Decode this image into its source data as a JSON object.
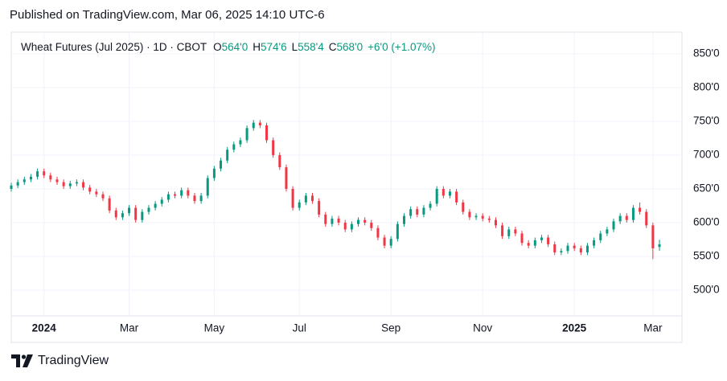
{
  "header": "Published on TradingView.com, Mar 06, 2025 14:10 UTC-6",
  "chart_data": {
    "type": "candlestick",
    "legend": {
      "symbol": "Wheat Futures (Jul 2025) · 1D · CBOT",
      "o_label": "O",
      "open": "564'0",
      "h_label": "H",
      "high": "574'6",
      "l_label": "L",
      "low": "558'4",
      "c_label": "C",
      "close": "568'0",
      "change": "+6'0 (+1.07%)"
    },
    "categories": [
      null,
      null,
      null,
      null,
      null,
      "2024",
      null,
      null,
      null,
      null,
      null,
      null,
      null,
      null,
      null,
      null,
      null,
      null,
      "Mar",
      null,
      null,
      null,
      null,
      null,
      null,
      null,
      null,
      null,
      null,
      null,
      null,
      "May",
      null,
      null,
      null,
      null,
      null,
      null,
      null,
      null,
      null,
      null,
      null,
      null,
      "Jul",
      null,
      null,
      null,
      null,
      null,
      null,
      null,
      null,
      null,
      null,
      null,
      null,
      null,
      "Sep",
      null,
      null,
      null,
      null,
      null,
      null,
      null,
      null,
      null,
      null,
      null,
      null,
      null,
      "Nov",
      null,
      null,
      null,
      null,
      null,
      null,
      null,
      null,
      null,
      null,
      null,
      null,
      null,
      "2025",
      null,
      null,
      null,
      null,
      null,
      null,
      null,
      null,
      null,
      null,
      null,
      "Mar",
      null
    ],
    "open": [
      650,
      655,
      660,
      664,
      668,
      676,
      670,
      664,
      660,
      654,
      658,
      660,
      652,
      646,
      642,
      636,
      618,
      608,
      614,
      622,
      604,
      616,
      622,
      628,
      634,
      642,
      640,
      648,
      640,
      632,
      640,
      666,
      680,
      692,
      708,
      716,
      722,
      740,
      748,
      744,
      722,
      700,
      682,
      650,
      622,
      630,
      640,
      632,
      612,
      598,
      606,
      600,
      590,
      598,
      604,
      600,
      592,
      578,
      566,
      576,
      598,
      610,
      620,
      612,
      622,
      628,
      650,
      640,
      646,
      630,
      616,
      608,
      610,
      606,
      604,
      596,
      580,
      590,
      584,
      570,
      566,
      574,
      578,
      568,
      556,
      558,
      566,
      562,
      556,
      566,
      574,
      584,
      590,
      602,
      610,
      604,
      622,
      616,
      596,
      564
    ],
    "high": [
      659,
      664,
      668,
      672,
      680,
      680,
      674,
      668,
      664,
      662,
      664,
      664,
      656,
      650,
      646,
      640,
      622,
      618,
      626,
      626,
      620,
      626,
      632,
      638,
      646,
      646,
      652,
      652,
      644,
      644,
      670,
      684,
      696,
      712,
      720,
      726,
      744,
      752,
      752,
      748,
      726,
      704,
      686,
      654,
      634,
      644,
      644,
      636,
      616,
      610,
      610,
      604,
      602,
      608,
      608,
      604,
      596,
      582,
      580,
      602,
      614,
      624,
      624,
      626,
      632,
      654,
      654,
      650,
      650,
      634,
      620,
      614,
      614,
      610,
      608,
      600,
      594,
      594,
      588,
      574,
      578,
      582,
      582,
      572,
      562,
      570,
      570,
      566,
      570,
      578,
      588,
      594,
      606,
      614,
      614,
      626,
      630,
      620,
      600,
      574.75
    ],
    "low": [
      646,
      651,
      656,
      660,
      664,
      666,
      660,
      656,
      650,
      650,
      654,
      648,
      642,
      638,
      632,
      614,
      604,
      604,
      610,
      600,
      600,
      612,
      618,
      624,
      630,
      636,
      636,
      636,
      628,
      628,
      636,
      662,
      676,
      688,
      704,
      712,
      718,
      736,
      740,
      718,
      696,
      678,
      646,
      618,
      618,
      626,
      628,
      608,
      594,
      594,
      596,
      586,
      586,
      594,
      596,
      588,
      574,
      562,
      562,
      572,
      594,
      606,
      608,
      608,
      618,
      624,
      636,
      636,
      626,
      612,
      604,
      604,
      602,
      600,
      592,
      576,
      576,
      580,
      566,
      562,
      562,
      570,
      564,
      552,
      552,
      554,
      558,
      552,
      552,
      562,
      570,
      580,
      586,
      598,
      600,
      600,
      612,
      592,
      546,
      558.5
    ],
    "close": [
      655,
      660,
      664,
      668,
      676,
      670,
      664,
      660,
      654,
      658,
      660,
      652,
      646,
      642,
      636,
      618,
      608,
      614,
      622,
      604,
      616,
      622,
      628,
      634,
      642,
      640,
      648,
      640,
      632,
      640,
      666,
      680,
      692,
      708,
      716,
      722,
      740,
      748,
      744,
      722,
      700,
      682,
      650,
      622,
      630,
      640,
      632,
      612,
      598,
      606,
      600,
      590,
      598,
      604,
      600,
      592,
      578,
      566,
      576,
      598,
      610,
      620,
      612,
      622,
      628,
      650,
      640,
      646,
      630,
      616,
      608,
      610,
      606,
      604,
      596,
      580,
      590,
      584,
      570,
      566,
      574,
      578,
      568,
      556,
      558,
      566,
      562,
      556,
      566,
      574,
      584,
      590,
      602,
      610,
      604,
      622,
      616,
      596,
      562,
      568
    ],
    "up_color": "#089981",
    "down_color": "#f23645",
    "ylim": [
      462,
      882
    ],
    "yticks": [
      {
        "value": 500,
        "label": "500'0"
      },
      {
        "value": 550,
        "label": "550'0"
      },
      {
        "value": 600,
        "label": "600'0"
      },
      {
        "value": 650,
        "label": "650'0"
      },
      {
        "value": 700,
        "label": "700'0"
      },
      {
        "value": 750,
        "label": "750'0"
      },
      {
        "value": 800,
        "label": "800'0"
      },
      {
        "value": 850,
        "label": "850'0"
      }
    ],
    "grid": true
  },
  "footer": {
    "brand": "TradingView"
  }
}
